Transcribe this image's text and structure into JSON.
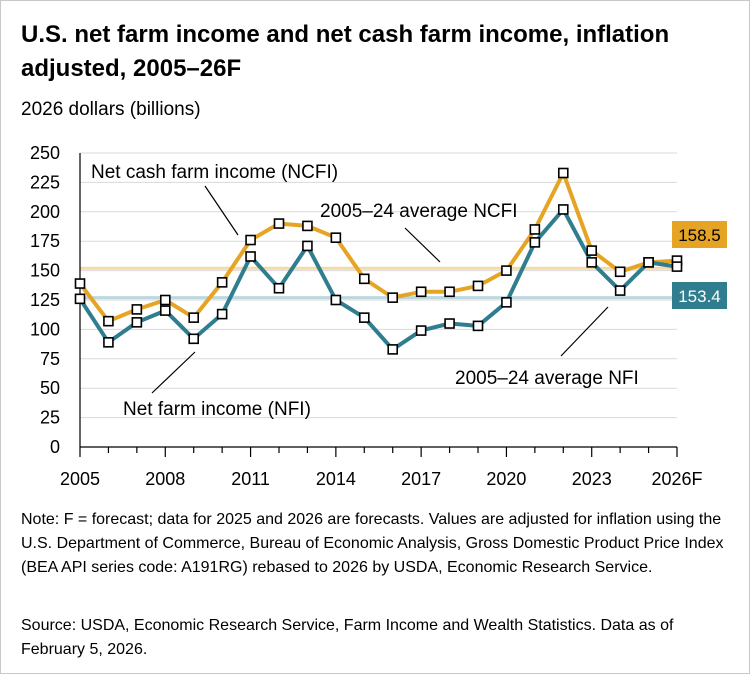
{
  "title": "U.S. net farm income and net cash farm income, inflation adjusted, 2005–26F",
  "units_label": "2026 dollars (billions)",
  "note": "Note: F = forecast; data for 2025 and 2026 are forecasts. Values are adjusted for inflation using the U.S. Department of Commerce, Bureau of Economic Analysis, Gross Domestic Product Price Index (BEA API series code: A191RG) rebased to 2026 by USDA, Economic Research Service.",
  "source": "Source: USDA, Economic Research Service, Farm Income and Wealth Statistics. Data as of February 5, 2026.",
  "colors": {
    "ncfi": "#e5a423",
    "nfi": "#2f7d8f",
    "ncfi_avg": "#f5d9a6",
    "nfi_avg": "#bcd7e0",
    "grid": "#d9d9d9"
  },
  "chart_data": {
    "type": "line",
    "x": [
      "2005",
      "2006",
      "2007",
      "2008",
      "2009",
      "2010",
      "2011",
      "2012",
      "2013",
      "2014",
      "2015",
      "2016",
      "2017",
      "2018",
      "2019",
      "2020",
      "2021",
      "2022",
      "2023",
      "2024",
      "2025",
      "2026"
    ],
    "x_tick_labels": [
      "2005",
      "2008",
      "2011",
      "2014",
      "2017",
      "2020",
      "2023",
      "2026F"
    ],
    "ylim": [
      0,
      250
    ],
    "y_ticks": [
      0,
      25,
      50,
      75,
      100,
      125,
      150,
      175,
      200,
      225,
      250
    ],
    "grid": true,
    "series": [
      {
        "name": "Net cash farm income (NCFI)",
        "color": "#e5a423",
        "values": [
          139,
          107,
          117,
          125,
          110,
          140,
          176,
          190,
          188,
          178,
          143,
          127,
          132,
          132,
          137,
          150,
          185,
          233,
          167,
          149,
          157,
          158.5
        ]
      },
      {
        "name": "Net farm income (NFI)",
        "color": "#2f7d8f",
        "values": [
          126,
          89,
          106,
          116,
          92,
          113,
          162,
          135,
          171,
          125,
          110,
          83,
          99,
          105,
          103,
          123,
          174,
          202,
          157,
          133,
          157,
          153.4
        ]
      }
    ],
    "averages": [
      {
        "name": "2005–24 average NCFI",
        "value": 152,
        "color": "#f5d9a6"
      },
      {
        "name": "2005–24 average NFI",
        "value": 127,
        "color": "#bcd7e0"
      }
    ],
    "end_labels": {
      "ncfi": "158.5",
      "nfi": "153.4"
    }
  }
}
